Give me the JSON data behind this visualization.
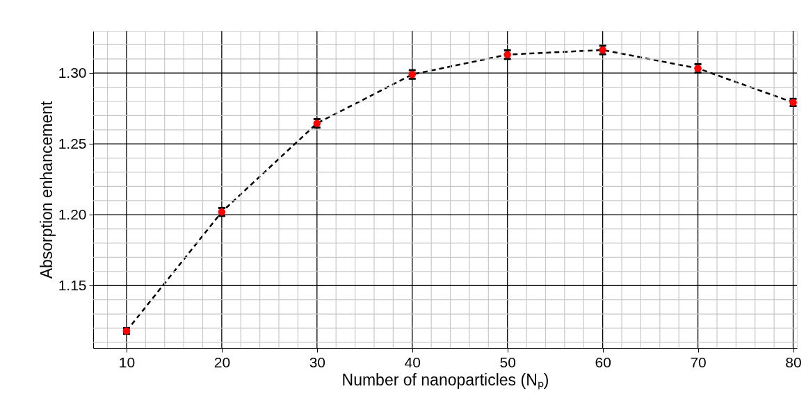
{
  "chart_data": {
    "type": "line",
    "xlabel": "Number of nanoparticles (Nₚ)",
    "ylabel": "Absorption enhancement",
    "x": [
      10,
      20,
      30,
      40,
      50,
      60,
      70,
      80
    ],
    "series": [
      {
        "color": "#ff0000",
        "values": [
          1.118,
          1.202,
          1.2645,
          1.299,
          1.313,
          1.3163,
          1.3033,
          1.2793
        ],
        "errors": [
          0.002,
          0.0028,
          0.003,
          0.003,
          0.003,
          0.003,
          0.003,
          0.0025
        ]
      }
    ],
    "xlim": [
      6.5,
      80.4
    ],
    "ylim": [
      1.106,
      1.3295
    ],
    "xticks": [
      {
        "value": 8,
        "label": null
      },
      10,
      {
        "value": 12,
        "label": null
      },
      {
        "value": 14,
        "label": null
      },
      {
        "value": 16,
        "label": null
      },
      {
        "value": 18,
        "label": null
      },
      20,
      {
        "value": 22,
        "label": null
      },
      {
        "value": 24,
        "label": null
      },
      {
        "value": 26,
        "label": null
      },
      {
        "value": 28,
        "label": null
      },
      30,
      {
        "value": 32,
        "label": null
      },
      {
        "value": 34,
        "label": null
      },
      {
        "value": 36,
        "label": null
      },
      {
        "value": 38,
        "label": null
      },
      40,
      {
        "value": 42,
        "label": null
      },
      {
        "value": 44,
        "label": null
      },
      {
        "value": 46,
        "label": null
      },
      {
        "value": 48,
        "label": null
      },
      50,
      {
        "value": 52,
        "label": null
      },
      {
        "value": 54,
        "label": null
      },
      {
        "value": 56,
        "label": null
      },
      {
        "value": 58,
        "label": null
      },
      60,
      {
        "value": 62,
        "label": null
      },
      {
        "value": 64,
        "label": null
      },
      {
        "value": 66,
        "label": null
      },
      {
        "value": 68,
        "label": null
      },
      70,
      {
        "value": 72,
        "label": null
      },
      {
        "value": 74,
        "label": null
      },
      {
        "value": 76,
        "label": null
      },
      {
        "value": 78,
        "label": null
      },
      80
    ],
    "yticks": [
      {
        "value": 1.11,
        "label": null
      },
      {
        "value": 1.12,
        "label": null
      },
      {
        "value": 1.13,
        "label": null
      },
      {
        "value": 1.14,
        "label": null
      },
      {
        "value": 1.15,
        "label": "1.15"
      },
      {
        "value": 1.16,
        "label": null
      },
      {
        "value": 1.17,
        "label": null
      },
      {
        "value": 1.18,
        "label": null
      },
      {
        "value": 1.19,
        "label": null
      },
      {
        "value": 1.2,
        "label": "1.20"
      },
      {
        "value": 1.21,
        "label": null
      },
      {
        "value": 1.22,
        "label": null
      },
      {
        "value": 1.23,
        "label": null
      },
      {
        "value": 1.24,
        "label": null
      },
      {
        "value": 1.25,
        "label": "1.25"
      },
      {
        "value": 1.26,
        "label": null
      },
      {
        "value": 1.27,
        "label": null
      },
      {
        "value": 1.28,
        "label": null
      },
      {
        "value": 1.29,
        "label": null
      },
      {
        "value": 1.3,
        "label": "1.30"
      },
      {
        "value": 1.31,
        "label": null
      },
      {
        "value": 1.32,
        "label": null
      }
    ],
    "grid": true,
    "marker": "circle",
    "line_style": "dashed"
  }
}
